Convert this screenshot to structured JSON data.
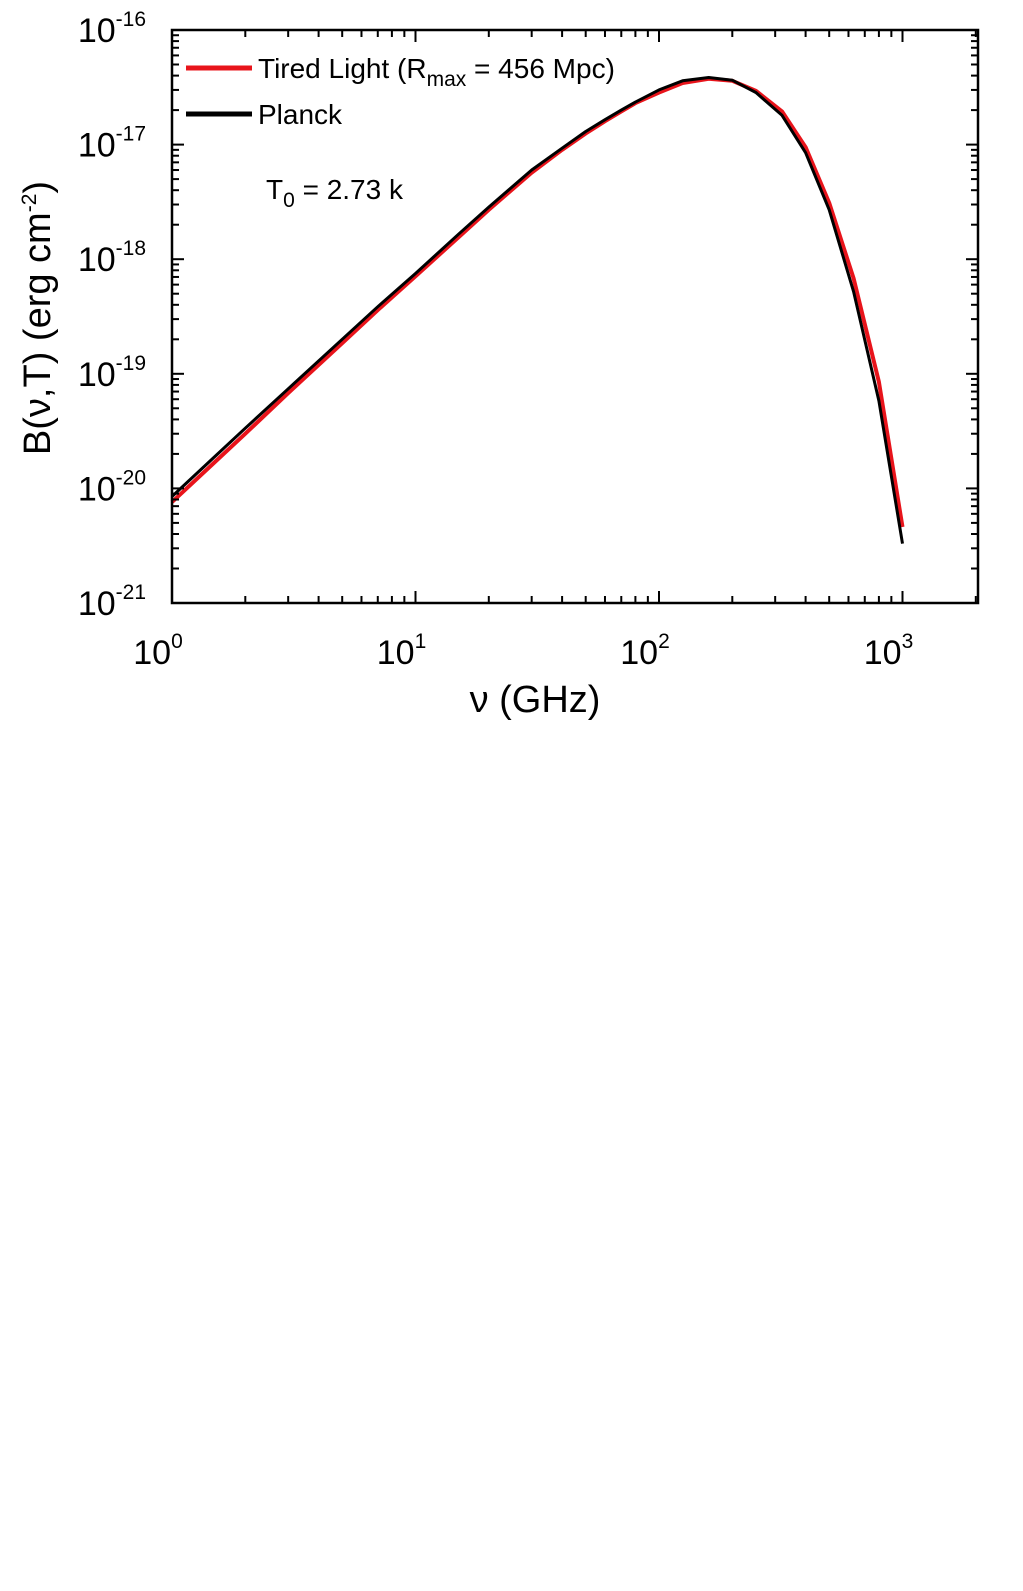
{
  "chart_data": {
    "type": "line",
    "xscale": "log",
    "yscale": "log",
    "xlim": [
      1,
      2000
    ],
    "ylim": [
      1e-21,
      1e-16
    ],
    "xlabel": "ν (GHz)",
    "ylabel": {
      "prefix": "B(ν,T)  (erg cm",
      "exp": "-2",
      "suffix": ")"
    },
    "x_ticks": [
      {
        "value": 1,
        "base": "10",
        "exp": "0"
      },
      {
        "value": 10,
        "base": "10",
        "exp": "1"
      },
      {
        "value": 100,
        "base": "10",
        "exp": "2"
      },
      {
        "value": 1000,
        "base": "10",
        "exp": "3"
      }
    ],
    "y_ticks": [
      {
        "value": 1e-21,
        "base": "10",
        "exp": "-21"
      },
      {
        "value": 1e-20,
        "base": "10",
        "exp": "-20"
      },
      {
        "value": 1e-19,
        "base": "10",
        "exp": "-19"
      },
      {
        "value": 1e-18,
        "base": "10",
        "exp": "-18"
      },
      {
        "value": 1e-17,
        "base": "10",
        "exp": "-17"
      },
      {
        "value": 1e-16,
        "base": "10",
        "exp": "-16"
      }
    ],
    "grid": false,
    "legend_position": "top-left",
    "annotation": {
      "main": "T",
      "sub": "0",
      "rest": " = 2.73 k"
    },
    "series": [
      {
        "name": "Tired Light (R",
        "name_sub": "max",
        "name_rest": " = 456 Mpc)",
        "color": "#e8141b",
        "x": [
          1,
          1.5,
          2,
          3,
          5,
          7,
          10,
          15,
          20,
          30,
          40,
          50,
          60,
          70,
          80,
          100,
          125,
          160,
          200,
          250,
          320,
          400,
          500,
          630,
          800,
          1000
        ],
        "y": [
          7.6e-21,
          1.7e-20,
          3e-20,
          6.8e-20,
          1.85e-19,
          3.6e-19,
          7.1e-19,
          1.55e-18,
          2.7e-18,
          5.7e-18,
          9e-18,
          1.25e-17,
          1.6e-17,
          1.95e-17,
          2.3e-17,
          2.85e-17,
          3.45e-17,
          3.75e-17,
          3.6e-17,
          2.95e-17,
          1.95e-17,
          9.5e-18,
          3.1e-18,
          6.8e-19,
          8.5e-20,
          4.6e-21
        ]
      },
      {
        "name": "Planck",
        "color": "#000000",
        "x": [
          1,
          1.5,
          2,
          3,
          5,
          7,
          10,
          15,
          20,
          30,
          40,
          50,
          60,
          70,
          80,
          100,
          125,
          160,
          200,
          250,
          320,
          400,
          500,
          630,
          800,
          1000
        ],
        "y": [
          8.5e-21,
          1.9e-20,
          3.35e-20,
          7.4e-20,
          2e-19,
          3.85e-19,
          7.5e-19,
          1.65e-18,
          2.85e-18,
          6e-18,
          9.3e-18,
          1.3e-17,
          1.65e-17,
          2e-17,
          2.35e-17,
          3e-17,
          3.6e-17,
          3.85e-17,
          3.65e-17,
          2.85e-17,
          1.8e-17,
          8.5e-18,
          2.7e-18,
          5.2e-19,
          5.8e-20,
          3.3e-21
        ]
      }
    ]
  }
}
